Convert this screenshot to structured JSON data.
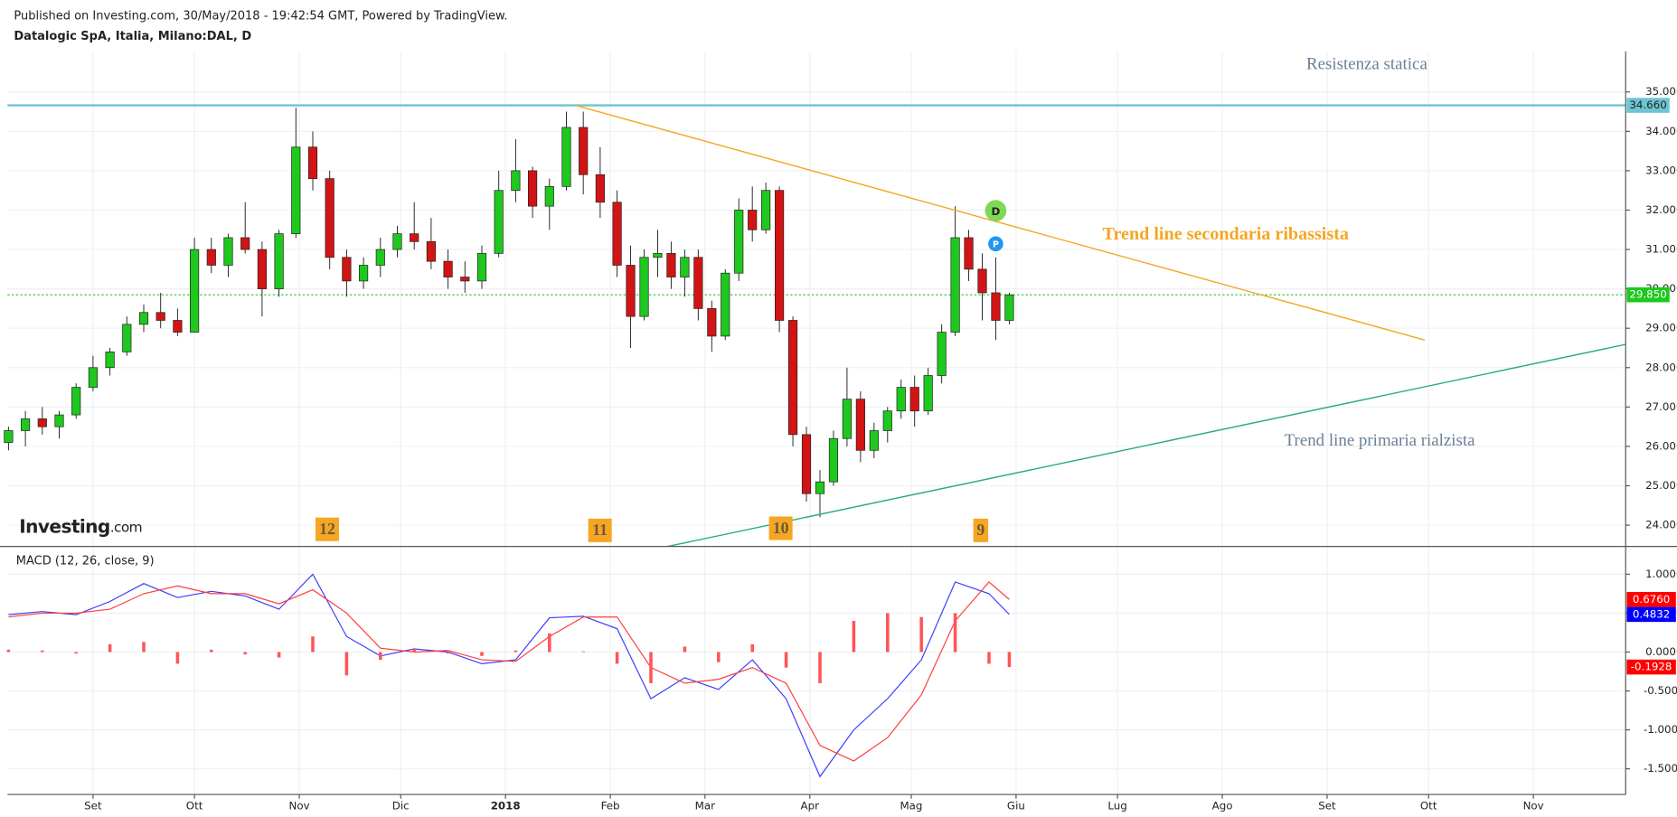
{
  "header": {
    "published": "Published on Investing.com, 30/May/2018 - 19:42:54 GMT, Powered by TradingView.",
    "symbol": "Datalogic SpA, Italia, Milano:DAL, D",
    "logo": [
      "Investing",
      ".com"
    ]
  },
  "chart_data": [
    {
      "type": "candlestick",
      "xlim": [
        5.7,
        484.3
      ],
      "ylim": [
        23.46,
        36.03
      ],
      "xticks": [
        {
          "value": 31,
          "label": "Set"
        },
        {
          "value": 61,
          "label": "Ott"
        },
        {
          "value": 92,
          "label": "Nov"
        },
        {
          "value": 122,
          "label": "Dic"
        },
        {
          "value": 153,
          "label": "2018"
        },
        {
          "value": 184,
          "label": "Feb"
        },
        {
          "value": 212,
          "label": "Mar"
        },
        {
          "value": 243,
          "label": "Apr"
        },
        {
          "value": 273,
          "label": "Mag"
        },
        {
          "value": 304,
          "label": "Giu"
        },
        {
          "value": 334,
          "label": "Lug"
        },
        {
          "value": 365,
          "label": "Ago"
        },
        {
          "value": 396,
          "label": "Set"
        },
        {
          "value": 426,
          "label": "Ott"
        },
        {
          "value": 457,
          "label": "Nov"
        }
      ],
      "yticks": [
        {
          "value": 24,
          "label": "24.000"
        },
        {
          "value": 25,
          "label": "25.000"
        },
        {
          "value": 26,
          "label": "26.000"
        },
        {
          "value": 27,
          "label": "27.000"
        },
        {
          "value": 28,
          "label": "28.000"
        },
        {
          "value": 29,
          "label": "29.000"
        },
        {
          "value": 30,
          "label": "30.000"
        },
        {
          "value": 31,
          "label": "31.000"
        },
        {
          "value": 32,
          "label": "32.000"
        },
        {
          "value": 33,
          "label": "33.000"
        },
        {
          "value": 34,
          "label": "34.000"
        },
        {
          "value": 35,
          "label": "35.000"
        }
      ],
      "grid": true,
      "up_color": "#1ec81e",
      "down_color": "#d21414",
      "x": [
        6,
        11,
        16,
        21,
        26,
        31,
        36,
        41,
        46,
        51,
        56,
        61,
        66,
        71,
        76,
        81,
        86,
        91,
        96,
        101,
        106,
        111,
        116,
        121,
        126,
        131,
        136,
        141,
        146,
        151,
        156,
        161,
        166,
        171,
        176,
        181,
        186,
        190,
        194,
        198,
        202,
        206,
        210,
        214,
        218,
        222,
        226,
        230,
        234,
        238,
        242,
        246,
        250,
        254,
        258,
        262,
        266,
        270,
        274,
        278,
        282,
        286,
        290,
        294,
        298,
        302
      ],
      "open": [
        26.1,
        26.4,
        26.7,
        26.5,
        26.8,
        27.5,
        28.0,
        28.4,
        29.1,
        29.4,
        29.2,
        28.9,
        31.0,
        30.6,
        31.3,
        31.0,
        30.0,
        31.4,
        33.6,
        32.8,
        30.8,
        30.2,
        30.6,
        31.0,
        31.4,
        31.2,
        30.7,
        30.3,
        30.2,
        30.9,
        32.5,
        33.0,
        32.1,
        32.6,
        34.1,
        32.9,
        32.2,
        30.6,
        29.3,
        30.8,
        30.9,
        30.3,
        30.8,
        29.5,
        28.8,
        30.4,
        32.0,
        31.5,
        32.5,
        29.2,
        26.3,
        24.8,
        25.1,
        26.2,
        27.2,
        25.9,
        26.4,
        26.9,
        27.5,
        26.9,
        27.8,
        28.9,
        31.3,
        30.5,
        29.9,
        29.2
      ],
      "high": [
        26.5,
        26.9,
        27.0,
        26.9,
        27.6,
        28.3,
        28.5,
        29.3,
        29.6,
        29.9,
        29.5,
        31.3,
        31.3,
        31.4,
        32.2,
        31.2,
        31.5,
        34.6,
        34.0,
        33.0,
        31.0,
        30.8,
        31.3,
        31.6,
        32.2,
        31.8,
        31.0,
        30.7,
        31.1,
        33.0,
        33.8,
        33.1,
        32.8,
        34.5,
        34.5,
        33.6,
        32.5,
        31.1,
        31.0,
        31.5,
        31.2,
        31.0,
        31.0,
        29.7,
        30.5,
        32.3,
        32.6,
        32.7,
        32.6,
        29.3,
        26.5,
        25.4,
        26.4,
        28.0,
        27.4,
        26.6,
        27.0,
        27.7,
        27.8,
        28.0,
        29.1,
        32.1,
        31.5,
        30.9,
        30.8,
        29.9
      ],
      "low": [
        25.9,
        26.0,
        26.3,
        26.2,
        26.7,
        27.4,
        27.8,
        28.3,
        28.9,
        29.0,
        28.8,
        28.9,
        30.4,
        30.3,
        30.9,
        29.3,
        29.8,
        31.3,
        32.5,
        30.5,
        29.8,
        30.0,
        30.3,
        30.8,
        31.0,
        30.5,
        30.0,
        29.9,
        30.0,
        30.8,
        32.2,
        31.8,
        31.5,
        32.5,
        32.4,
        31.8,
        30.3,
        28.5,
        29.2,
        30.3,
        30.0,
        29.8,
        29.2,
        28.4,
        28.7,
        30.2,
        31.2,
        31.4,
        28.9,
        26.0,
        24.6,
        24.2,
        25.0,
        26.0,
        25.6,
        25.7,
        26.1,
        26.7,
        26.5,
        26.8,
        27.6,
        28.8,
        30.2,
        29.2,
        28.7,
        29.1
      ],
      "close": [
        26.4,
        26.7,
        26.5,
        26.8,
        27.5,
        28.0,
        28.4,
        29.1,
        29.4,
        29.2,
        28.9,
        31.0,
        30.6,
        31.3,
        31.0,
        30.0,
        31.4,
        33.6,
        32.8,
        30.8,
        30.2,
        30.6,
        31.0,
        31.4,
        31.2,
        30.7,
        30.3,
        30.2,
        30.9,
        32.5,
        33.0,
        32.1,
        32.6,
        34.1,
        32.9,
        32.2,
        30.6,
        29.3,
        30.8,
        30.9,
        30.3,
        30.8,
        29.5,
        28.8,
        30.4,
        32.0,
        31.5,
        32.5,
        29.2,
        26.3,
        24.8,
        25.1,
        26.2,
        27.2,
        25.9,
        26.4,
        26.9,
        27.5,
        26.9,
        27.8,
        28.9,
        31.3,
        30.5,
        29.9,
        29.2,
        29.85
      ],
      "resistance": {
        "value": 34.66,
        "label": "34.660",
        "color": "#6cc5d3"
      },
      "last": {
        "value": 29.85,
        "label": "29.850",
        "color": "#1ec81e"
      },
      "trendlines": [
        {
          "color": "#f5a623",
          "x": [
            173.7,
            424.9
          ],
          "values": [
            34.66,
            28.7
          ]
        },
        {
          "color": "#2aa88a",
          "x": [
            201,
            484.3
          ],
          "values": [
            23.46,
            28.59
          ]
        }
      ],
      "annotations": [
        {
          "text": "Resistenza statica",
          "color": "#6b7f95"
        },
        {
          "text": "Trend line secondaria ribassista",
          "color": "#f5a623"
        },
        {
          "text": "Trend line primaria rialzista",
          "color": "#6b7f95"
        }
      ],
      "markers": [
        "12",
        "11",
        "10",
        "9"
      ],
      "events": [
        {
          "text": "D",
          "color": "#7ed957"
        },
        {
          "text": "P",
          "color": "#2196f3"
        }
      ]
    },
    {
      "type": "macd",
      "title": "MACD (12, 26, close, 9)",
      "ylim": [
        -1.83,
        1.357
      ],
      "yticks": [
        {
          "value": -1.5,
          "label": "-1.5000"
        },
        {
          "value": -1,
          "label": "-1.0000"
        },
        {
          "value": -0.5,
          "label": "-0.5000"
        },
        {
          "value": 0,
          "label": "0.0000"
        },
        {
          "value": 0.5,
          "label": "0.5000"
        },
        {
          "value": 1,
          "label": "1.0000"
        }
      ],
      "x": [
        6,
        16,
        26,
        36,
        46,
        56,
        66,
        76,
        86,
        96,
        106,
        116,
        126,
        136,
        146,
        156,
        166,
        176,
        186,
        196,
        206,
        216,
        226,
        236,
        246,
        256,
        266,
        276,
        286,
        296,
        302
      ],
      "series": [
        {
          "name": "MACD",
          "color": "#3b3bff",
          "values": [
            0.48,
            0.52,
            0.48,
            0.65,
            0.88,
            0.7,
            0.78,
            0.72,
            0.55,
            1.0,
            0.2,
            -0.05,
            0.04,
            0.0,
            -0.15,
            -0.1,
            0.44,
            0.46,
            0.3,
            -0.6,
            -0.33,
            -0.48,
            -0.1,
            -0.6,
            -1.6,
            -1.0,
            -0.6,
            -0.1,
            0.9,
            0.75,
            0.4832
          ],
          "last": {
            "value": 0.4832,
            "label": "0.4832",
            "color": "#0000ff"
          }
        },
        {
          "name": "Signal",
          "color": "#ff3b3b",
          "values": [
            0.45,
            0.5,
            0.5,
            0.55,
            0.75,
            0.85,
            0.75,
            0.75,
            0.62,
            0.8,
            0.5,
            0.05,
            0.0,
            0.02,
            -0.1,
            -0.12,
            0.2,
            0.45,
            0.45,
            -0.2,
            -0.4,
            -0.35,
            -0.2,
            -0.4,
            -1.2,
            -1.4,
            -1.1,
            -0.55,
            0.4,
            0.9,
            0.676
          ],
          "last": {
            "value": 0.676,
            "label": "0.6760",
            "color": "#ff0000"
          }
        },
        {
          "name": "Histogram",
          "color": "#ff5555",
          "type": "bar",
          "values": [
            0.03,
            0.02,
            -0.02,
            0.1,
            0.13,
            -0.15,
            0.03,
            -0.03,
            -0.07,
            0.2,
            -0.3,
            -0.1,
            0.04,
            -0.02,
            -0.05,
            0.02,
            0.24,
            0.01,
            -0.15,
            -0.4,
            0.07,
            -0.13,
            0.1,
            -0.2,
            -0.4,
            0.4,
            0.5,
            0.45,
            0.5,
            -0.15,
            -0.1928
          ],
          "last": {
            "value": -0.1928,
            "label": "-0.1928",
            "color": "#ff0000"
          }
        }
      ]
    }
  ]
}
